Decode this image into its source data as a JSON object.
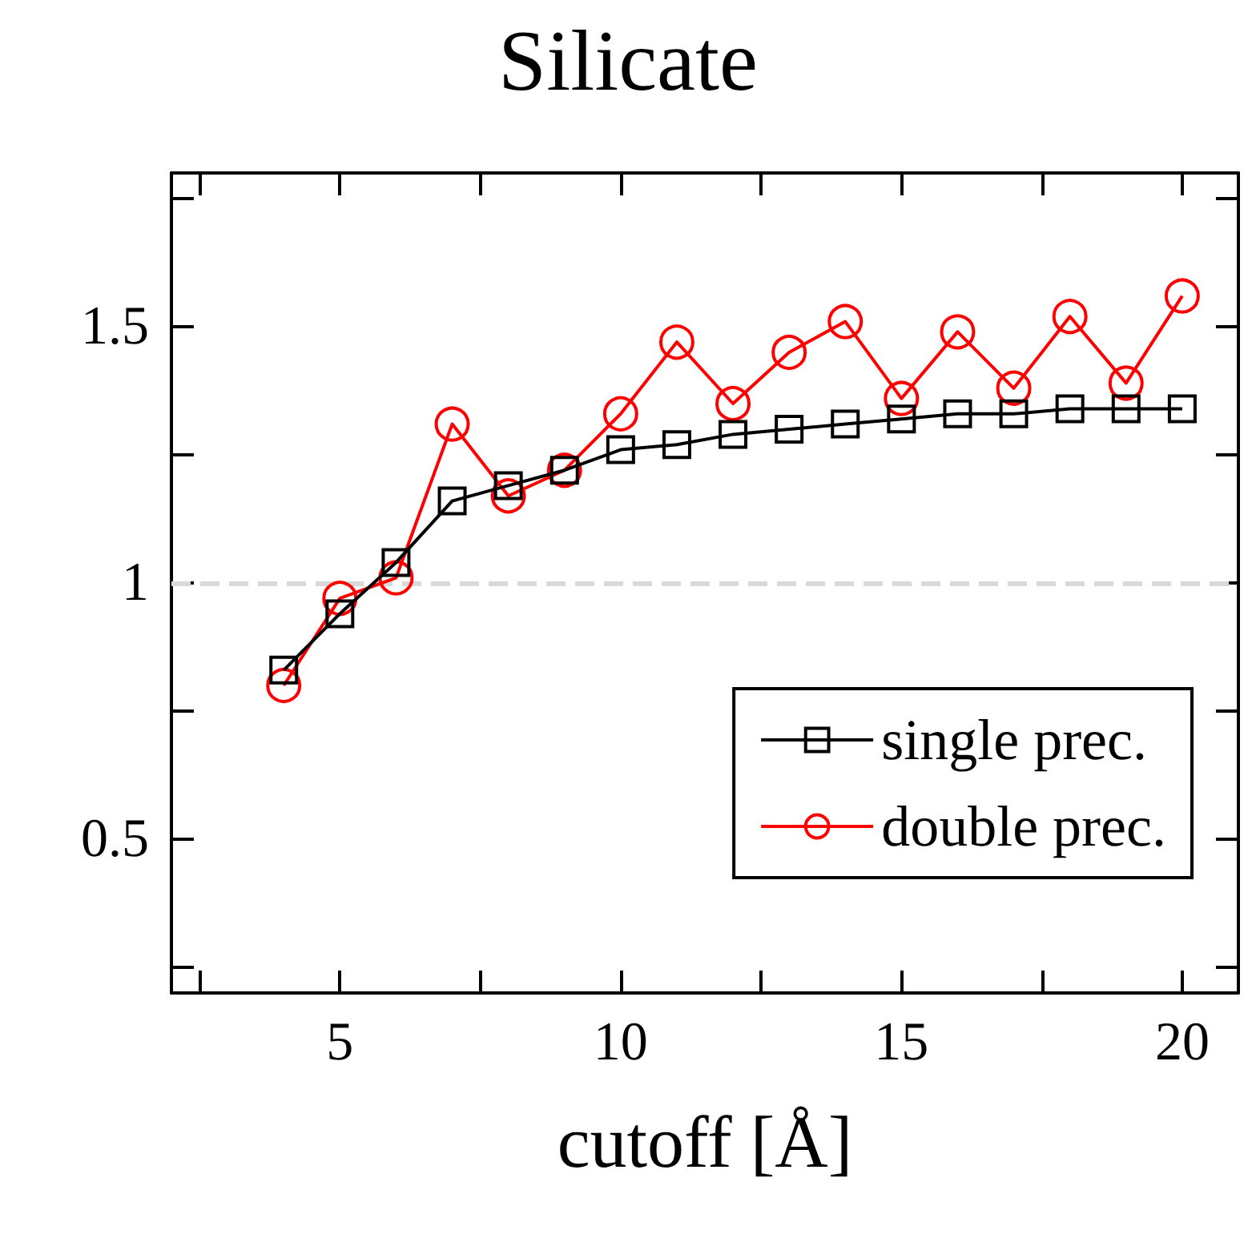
{
  "chart_data": {
    "type": "line",
    "title": "Silicate",
    "xlabel": "cutoff [Å]",
    "x": [
      4,
      5,
      6,
      7,
      8,
      9,
      10,
      11,
      12,
      13,
      14,
      15,
      16,
      17,
      18,
      19,
      20
    ],
    "series": [
      {
        "name": "single prec.",
        "color": "#000000",
        "marker": "square",
        "values": [
          0.83,
          0.94,
          1.04,
          1.16,
          1.19,
          1.22,
          1.26,
          1.27,
          1.29,
          1.3,
          1.31,
          1.32,
          1.33,
          1.33,
          1.34,
          1.34,
          1.34
        ]
      },
      {
        "name": "double prec.",
        "color": "#ff0000",
        "marker": "circle",
        "values": [
          0.8,
          0.97,
          1.01,
          1.31,
          1.17,
          1.22,
          1.33,
          1.47,
          1.35,
          1.45,
          1.51,
          1.36,
          1.49,
          1.38,
          1.52,
          1.39,
          1.56
        ]
      }
    ],
    "xlim": [
      2,
      21
    ],
    "xticks": [
      {
        "value": 2.5,
        "label": null
      },
      5,
      {
        "value": 7.5,
        "label": null
      },
      10,
      {
        "value": 12.5,
        "label": null
      },
      15,
      {
        "value": 17.5,
        "label": null
      },
      20
    ],
    "ylim": [
      0.2,
      1.8
    ],
    "yticks": [
      {
        "value": 0.25,
        "label": null
      },
      0.5,
      {
        "value": 0.75,
        "label": null
      },
      1,
      {
        "value": 1.25,
        "label": null
      },
      1.5,
      {
        "value": 1.75,
        "label": null
      }
    ],
    "ref_lines": [
      {
        "axis": "y",
        "value": 1,
        "color": "#d9d9d9",
        "line_style": "dashed"
      }
    ],
    "legend": "bottom right",
    "grid": false,
    "line_style": "solid"
  }
}
